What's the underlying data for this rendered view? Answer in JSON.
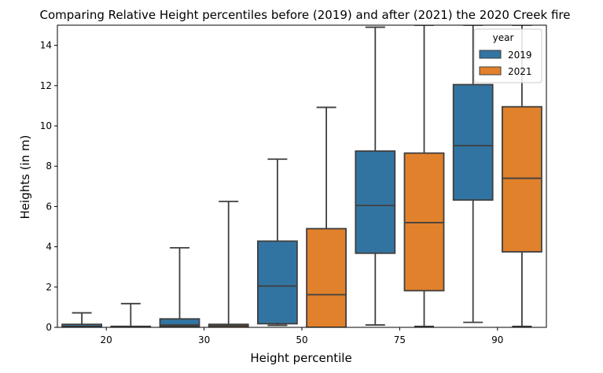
{
  "chart_data": {
    "type": "box",
    "title": "Comparing Relative Height percentiles before (2019) and after (2021) the 2020 Creek fire",
    "xlabel": "Height percentile",
    "ylabel": "Heights (in m)",
    "categories": [
      "20",
      "30",
      "50",
      "75",
      "90"
    ],
    "ylim": [
      0,
      15
    ],
    "yticks": [
      "0",
      "2",
      "4",
      "6",
      "8",
      "10",
      "12",
      "14"
    ],
    "legend": {
      "title": "year",
      "position": "top-right",
      "entries": [
        "2019",
        "2021"
      ]
    },
    "series": [
      {
        "name": "2019",
        "color": "#3274a1",
        "boxes": [
          {
            "whisker_low": 0.0,
            "q1": 0.0,
            "median": 0.05,
            "q3": 0.15,
            "whisker_high": 0.72
          },
          {
            "whisker_low": 0.0,
            "q1": 0.05,
            "median": 0.12,
            "q3": 0.42,
            "whisker_high": 3.95
          },
          {
            "whisker_low": 0.1,
            "q1": 0.18,
            "median": 2.05,
            "q3": 4.28,
            "whisker_high": 8.35
          },
          {
            "whisker_low": 0.12,
            "q1": 3.68,
            "median": 6.05,
            "q3": 8.75,
            "whisker_high": 14.9
          },
          {
            "whisker_low": 0.25,
            "q1": 6.32,
            "median": 9.02,
            "q3": 12.05,
            "whisker_high": 15.0
          }
        ]
      },
      {
        "name": "2021",
        "color": "#e1812c",
        "boxes": [
          {
            "whisker_low": 0.0,
            "q1": 0.0,
            "median": 0.03,
            "q3": 0.05,
            "whisker_high": 1.18
          },
          {
            "whisker_low": 0.0,
            "q1": 0.0,
            "median": 0.08,
            "q3": 0.15,
            "whisker_high": 6.25
          },
          {
            "whisker_low": 0.0,
            "q1": 0.0,
            "median": 1.62,
            "q3": 4.9,
            "whisker_high": 10.92
          },
          {
            "whisker_low": 0.05,
            "q1": 1.82,
            "median": 5.2,
            "q3": 8.65,
            "whisker_high": 15.0
          },
          {
            "whisker_low": 0.05,
            "q1": 3.75,
            "median": 7.4,
            "q3": 10.95,
            "whisker_high": 15.0
          }
        ]
      }
    ]
  }
}
